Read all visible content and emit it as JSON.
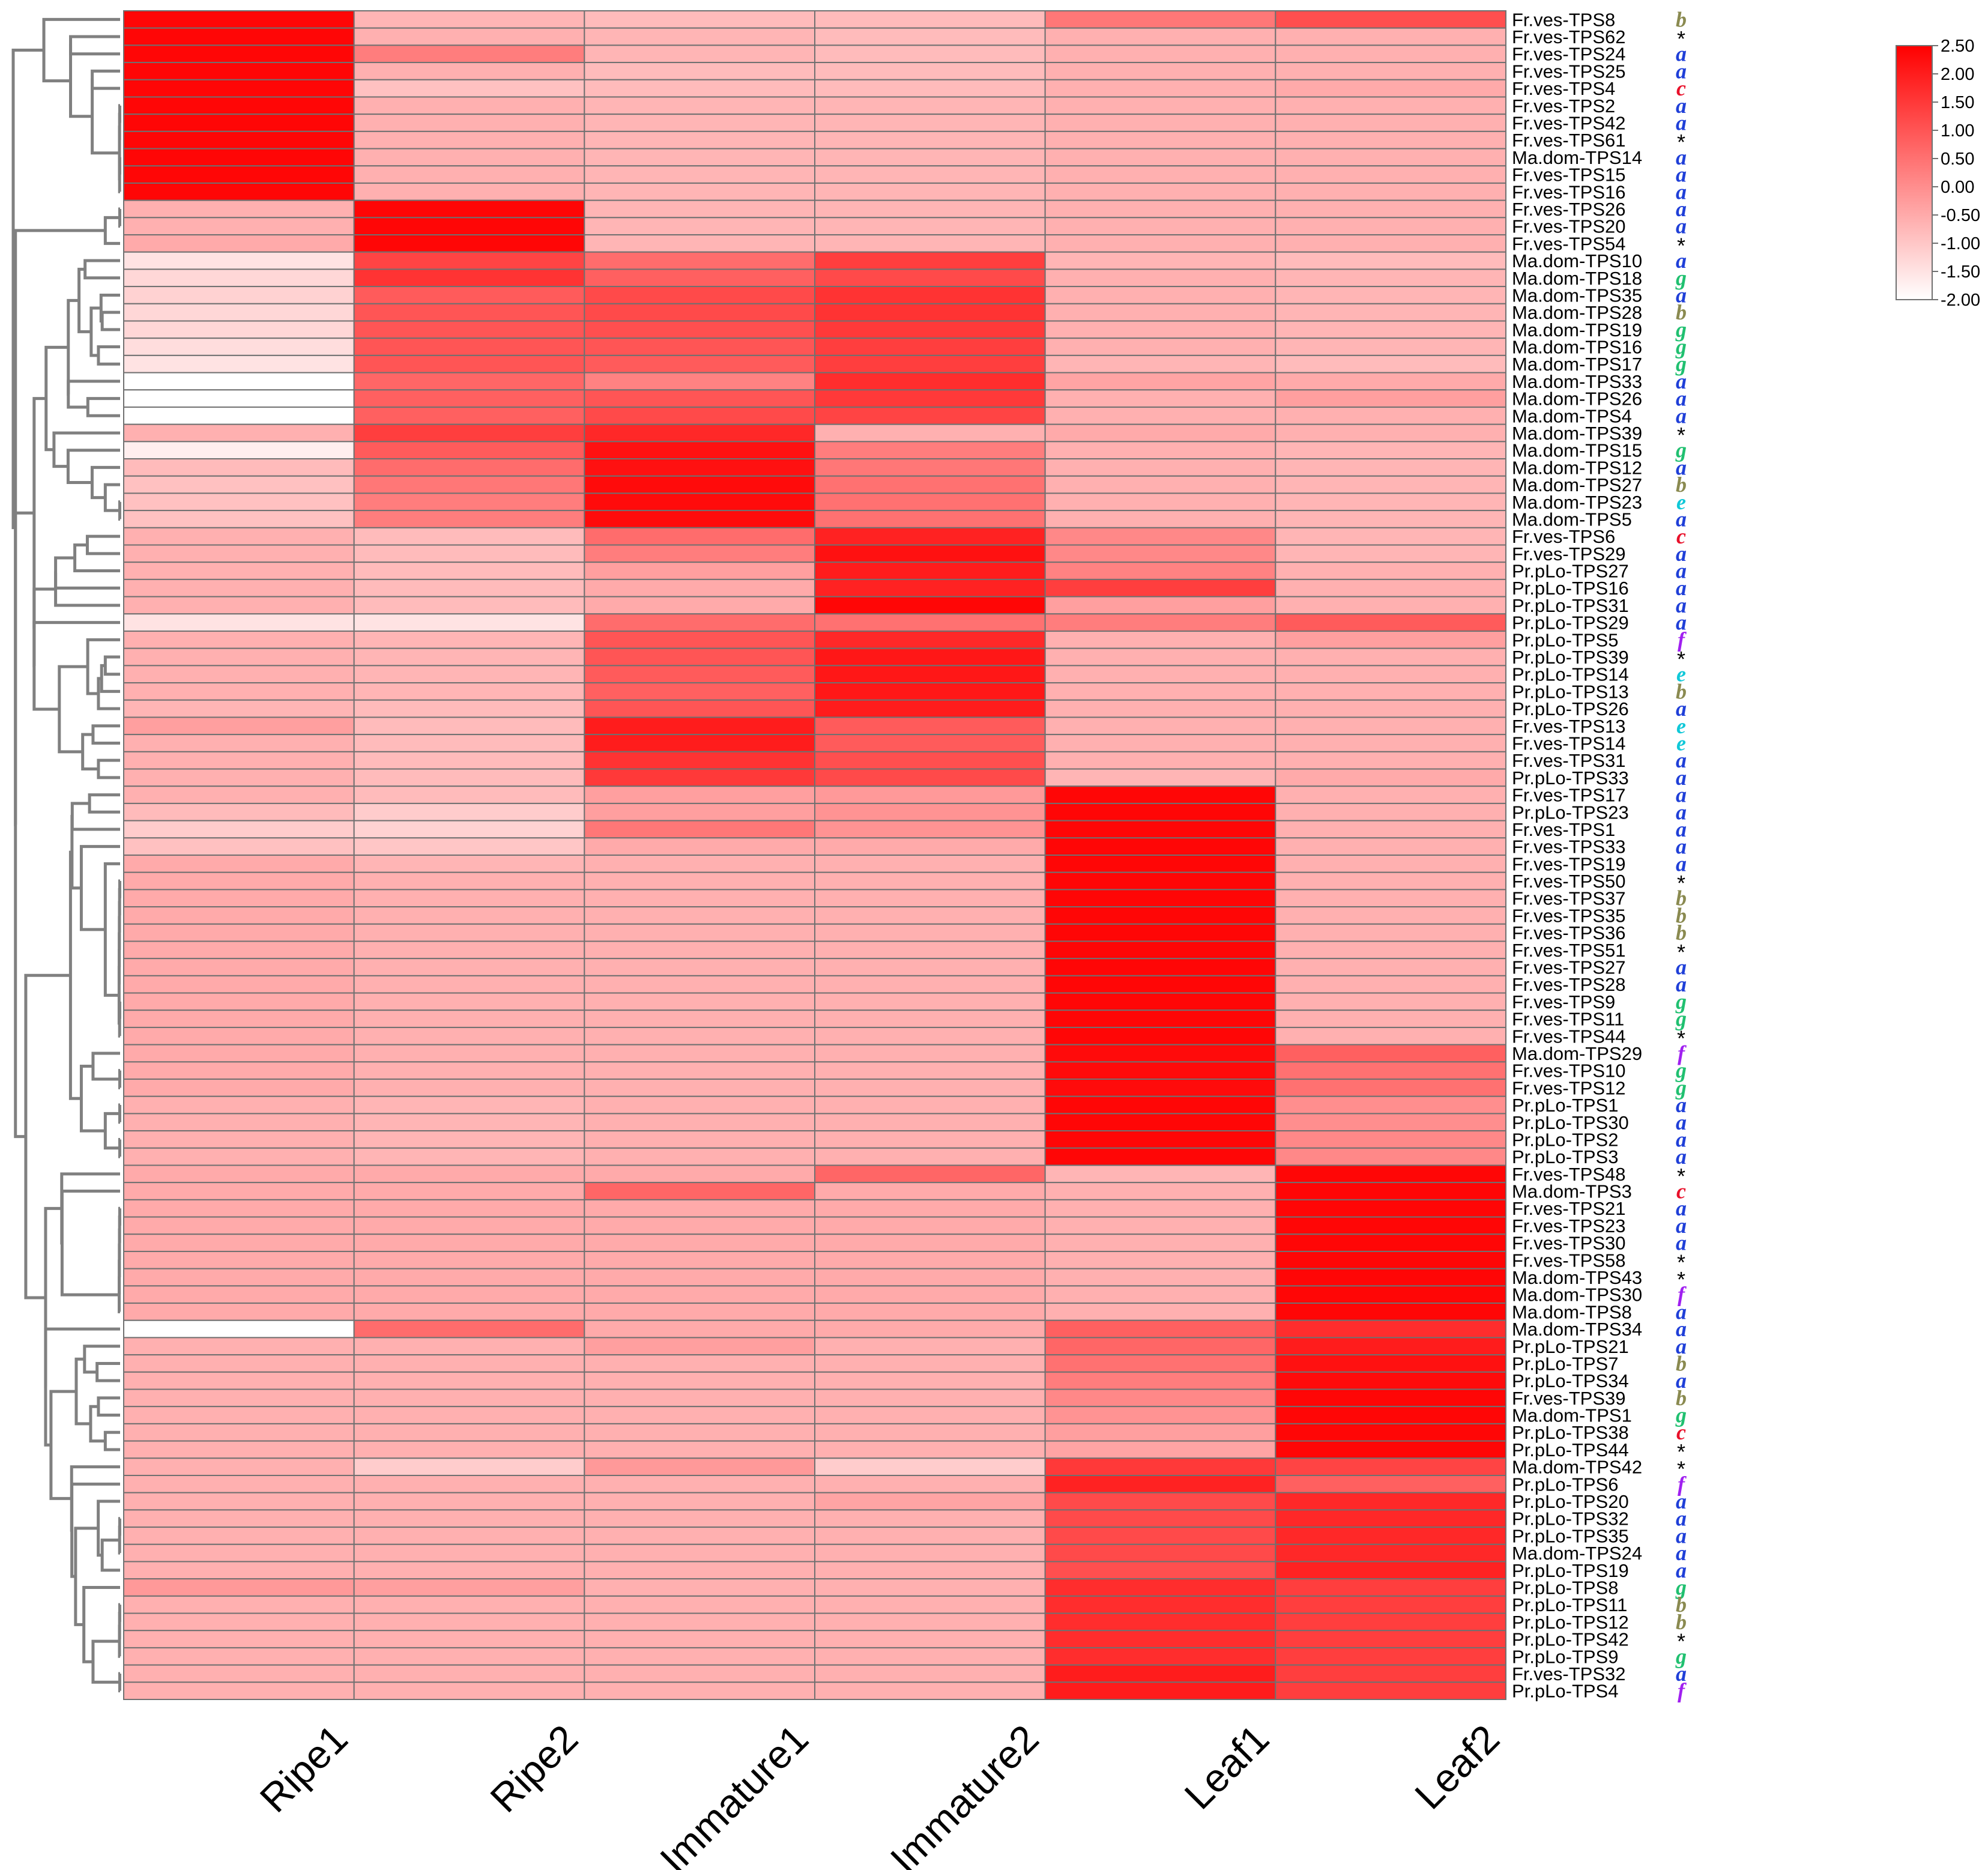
{
  "chart_data": {
    "type": "heatmap",
    "title": "",
    "columns": [
      "Ripe1",
      "Ripe2",
      "Immature1",
      "Immature2",
      "Leaf1",
      "Leaf2"
    ],
    "rows": [
      {
        "label": "Fr.ves-TPS8",
        "family": "b",
        "values": [
          2.4,
          -0.7,
          -0.8,
          -0.8,
          0.4,
          1.1
        ]
      },
      {
        "label": "Fr.ves-TPS62",
        "family": "*",
        "values": [
          2.4,
          -0.6,
          -0.7,
          -0.8,
          -0.6,
          -0.6
        ]
      },
      {
        "label": "Fr.ves-TPS24",
        "family": "a",
        "values": [
          2.4,
          0.3,
          -0.7,
          -0.8,
          -0.6,
          -0.6
        ]
      },
      {
        "label": "Fr.ves-TPS25",
        "family": "a",
        "values": [
          2.4,
          -0.6,
          -0.8,
          -0.8,
          -0.6,
          -0.6
        ]
      },
      {
        "label": "Fr.ves-TPS4",
        "family": "c",
        "values": [
          2.4,
          -0.9,
          -0.8,
          -0.8,
          -0.6,
          -0.5
        ]
      },
      {
        "label": "Fr.ves-TPS2",
        "family": "a",
        "values": [
          2.4,
          -0.6,
          -0.7,
          -0.7,
          -0.6,
          -0.6
        ]
      },
      {
        "label": "Fr.ves-TPS42",
        "family": "a",
        "values": [
          2.4,
          -0.6,
          -0.7,
          -0.7,
          -0.6,
          -0.6
        ]
      },
      {
        "label": "Fr.ves-TPS61",
        "family": "*",
        "values": [
          2.4,
          -0.6,
          -0.7,
          -0.7,
          -0.6,
          -0.6
        ]
      },
      {
        "label": "Ma.dom-TPS14",
        "family": "a",
        "values": [
          2.4,
          -0.6,
          -0.7,
          -0.7,
          -0.6,
          -0.6
        ]
      },
      {
        "label": "Fr.ves-TPS15",
        "family": "a",
        "values": [
          2.4,
          -0.6,
          -0.7,
          -0.7,
          -0.6,
          -0.6
        ]
      },
      {
        "label": "Fr.ves-TPS16",
        "family": "a",
        "values": [
          2.4,
          -0.6,
          -0.7,
          -0.7,
          -0.6,
          -0.6
        ]
      },
      {
        "label": "Fr.ves-TPS26",
        "family": "a",
        "values": [
          -0.6,
          2.4,
          -0.7,
          -0.7,
          -0.6,
          -0.6
        ]
      },
      {
        "label": "Fr.ves-TPS20",
        "family": "a",
        "values": [
          -0.6,
          2.4,
          -0.7,
          -0.7,
          -0.6,
          -0.6
        ]
      },
      {
        "label": "Fr.ves-TPS54",
        "family": "*",
        "values": [
          -0.5,
          2.4,
          -0.7,
          -0.7,
          -0.6,
          -0.6
        ]
      },
      {
        "label": "Ma.dom-TPS10",
        "family": "a",
        "values": [
          -1.5,
          1.3,
          0.6,
          1.4,
          -0.7,
          -0.8
        ]
      },
      {
        "label": "Ma.dom-TPS18",
        "family": "g",
        "values": [
          -1.3,
          1.6,
          0.8,
          1.2,
          -0.6,
          -0.7
        ]
      },
      {
        "label": "Ma.dom-TPS35",
        "family": "a",
        "values": [
          -1.2,
          0.9,
          1.2,
          1.6,
          -0.6,
          -0.7
        ]
      },
      {
        "label": "Ma.dom-TPS28",
        "family": "b",
        "values": [
          -1.3,
          1.0,
          1.2,
          1.6,
          -0.6,
          -0.7
        ]
      },
      {
        "label": "Ma.dom-TPS19",
        "family": "g",
        "values": [
          -1.3,
          1.0,
          1.1,
          1.5,
          -0.6,
          -0.7
        ]
      },
      {
        "label": "Ma.dom-TPS16",
        "family": "g",
        "values": [
          -1.4,
          1.0,
          1.0,
          1.4,
          -0.6,
          -0.7
        ]
      },
      {
        "label": "Ma.dom-TPS17",
        "family": "g",
        "values": [
          -1.5,
          1.0,
          0.9,
          1.4,
          -0.7,
          -0.8
        ]
      },
      {
        "label": "Ma.dom-TPS33",
        "family": "a",
        "values": [
          -2.0,
          0.7,
          0.2,
          1.7,
          -0.4,
          -0.5
        ]
      },
      {
        "label": "Ma.dom-TPS26",
        "family": "a",
        "values": [
          -2.0,
          0.8,
          1.0,
          1.5,
          -0.6,
          -0.3
        ]
      },
      {
        "label": "Ma.dom-TPS4",
        "family": "a",
        "values": [
          -2.0,
          0.8,
          1.2,
          1.3,
          -0.6,
          -0.6
        ]
      },
      {
        "label": "Ma.dom-TPS39",
        "family": "*",
        "values": [
          -0.6,
          1.4,
          1.8,
          -0.6,
          -0.5,
          -0.6
        ]
      },
      {
        "label": "Ma.dom-TPS15",
        "family": "g",
        "values": [
          -1.7,
          0.9,
          2.2,
          0.3,
          -0.6,
          -0.7
        ]
      },
      {
        "label": "Ma.dom-TPS12",
        "family": "a",
        "values": [
          -0.8,
          0.6,
          2.2,
          0.4,
          -0.6,
          -0.7
        ]
      },
      {
        "label": "Ma.dom-TPS27",
        "family": "b",
        "values": [
          -0.9,
          0.4,
          2.3,
          0.5,
          -0.6,
          -0.7
        ]
      },
      {
        "label": "Ma.dom-TPS23",
        "family": "e",
        "values": [
          -0.9,
          0.3,
          2.3,
          0.5,
          -0.6,
          -0.7
        ]
      },
      {
        "label": "Ma.dom-TPS5",
        "family": "a",
        "values": [
          -0.9,
          0.3,
          2.3,
          0.5,
          -0.6,
          -0.7
        ]
      },
      {
        "label": "Fr.ves-TPS6",
        "family": "c",
        "values": [
          -0.6,
          -0.8,
          0.6,
          1.9,
          0.1,
          -0.7
        ]
      },
      {
        "label": "Fr.ves-TPS29",
        "family": "a",
        "values": [
          -0.6,
          -0.8,
          0.3,
          2.2,
          0.1,
          -0.7
        ]
      },
      {
        "label": "Pr.pLo-TPS27",
        "family": "a",
        "values": [
          -0.6,
          -0.8,
          -0.3,
          2.0,
          0.2,
          -0.6
        ]
      },
      {
        "label": "Pr.pLo-TPS16",
        "family": "a",
        "values": [
          -0.6,
          -0.8,
          -0.5,
          1.9,
          1.4,
          -0.6
        ]
      },
      {
        "label": "Pr.pLo-TPS31",
        "family": "a",
        "values": [
          -0.6,
          -0.8,
          -0.5,
          2.4,
          -0.3,
          -0.6
        ]
      },
      {
        "label": "Pr.pLo-TPS29",
        "family": "a",
        "values": [
          -1.5,
          -1.5,
          0.6,
          0.5,
          0.3,
          0.9
        ]
      },
      {
        "label": "Pr.pLo-TPS5",
        "family": "f",
        "values": [
          -0.6,
          -0.7,
          1.0,
          1.8,
          -0.6,
          -0.3
        ]
      },
      {
        "label": "Pr.pLo-TPS39",
        "family": "*",
        "values": [
          -0.6,
          -0.7,
          1.0,
          2.1,
          -0.6,
          -0.6
        ]
      },
      {
        "label": "Pr.pLo-TPS14",
        "family": "e",
        "values": [
          -0.6,
          -0.7,
          0.9,
          2.1,
          -0.6,
          -0.6
        ]
      },
      {
        "label": "Pr.pLo-TPS13",
        "family": "b",
        "values": [
          -0.6,
          -0.7,
          0.8,
          2.1,
          -0.6,
          -0.6
        ]
      },
      {
        "label": "Pr.pLo-TPS26",
        "family": "a",
        "values": [
          -0.7,
          -0.8,
          1.0,
          2.0,
          -0.6,
          -0.6
        ]
      },
      {
        "label": "Fr.ves-TPS13",
        "family": "e",
        "values": [
          -0.3,
          -0.8,
          2.0,
          0.9,
          -0.6,
          -0.6
        ]
      },
      {
        "label": "Fr.ves-TPS14",
        "family": "e",
        "values": [
          -0.6,
          -0.8,
          2.0,
          0.9,
          -0.6,
          -0.6
        ]
      },
      {
        "label": "Fr.ves-TPS31",
        "family": "a",
        "values": [
          -0.6,
          -0.8,
          1.6,
          1.1,
          -0.6,
          -0.6
        ]
      },
      {
        "label": "Pr.pLo-TPS33",
        "family": "a",
        "values": [
          -0.6,
          -0.8,
          1.5,
          1.2,
          -0.7,
          -0.5
        ]
      },
      {
        "label": "Fr.ves-TPS17",
        "family": "a",
        "values": [
          -0.6,
          -0.8,
          -0.3,
          -0.2,
          2.4,
          -0.6
        ]
      },
      {
        "label": "Pr.pLo-TPS23",
        "family": "a",
        "values": [
          -0.8,
          -1.1,
          -0.3,
          -0.1,
          2.4,
          -0.6
        ]
      },
      {
        "label": "Fr.ves-TPS1",
        "family": "a",
        "values": [
          -1.1,
          -1.2,
          0.4,
          -0.1,
          2.4,
          -0.6
        ]
      },
      {
        "label": "Fr.ves-TPS33",
        "family": "a",
        "values": [
          -0.9,
          -1.0,
          -0.5,
          -0.5,
          2.4,
          -0.6
        ]
      },
      {
        "label": "Fr.ves-TPS19",
        "family": "a",
        "values": [
          -0.5,
          -0.7,
          -0.6,
          -0.6,
          2.4,
          -0.6
        ]
      },
      {
        "label": "Fr.ves-TPS50",
        "family": "*",
        "values": [
          -0.5,
          -0.6,
          -0.6,
          -0.6,
          2.4,
          -0.6
        ]
      },
      {
        "label": "Fr.ves-TPS37",
        "family": "b",
        "values": [
          -0.5,
          -0.6,
          -0.6,
          -0.6,
          2.4,
          -0.6
        ]
      },
      {
        "label": "Fr.ves-TPS35",
        "family": "b",
        "values": [
          -0.5,
          -0.6,
          -0.6,
          -0.6,
          2.4,
          -0.6
        ]
      },
      {
        "label": "Fr.ves-TPS36",
        "family": "b",
        "values": [
          -0.5,
          -0.6,
          -0.6,
          -0.6,
          2.4,
          -0.6
        ]
      },
      {
        "label": "Fr.ves-TPS51",
        "family": "*",
        "values": [
          -0.5,
          -0.6,
          -0.6,
          -0.6,
          2.4,
          -0.6
        ]
      },
      {
        "label": "Fr.ves-TPS27",
        "family": "a",
        "values": [
          -0.5,
          -0.6,
          -0.6,
          -0.6,
          2.4,
          -0.6
        ]
      },
      {
        "label": "Fr.ves-TPS28",
        "family": "a",
        "values": [
          -0.5,
          -0.6,
          -0.6,
          -0.6,
          2.4,
          -0.6
        ]
      },
      {
        "label": "Fr.ves-TPS9",
        "family": "g",
        "values": [
          -0.5,
          -0.6,
          -0.6,
          -0.6,
          2.4,
          -0.6
        ]
      },
      {
        "label": "Fr.ves-TPS11",
        "family": "g",
        "values": [
          -0.5,
          -0.6,
          -0.6,
          -0.6,
          2.4,
          -0.6
        ]
      },
      {
        "label": "Fr.ves-TPS44",
        "family": "*",
        "values": [
          -0.5,
          -0.6,
          -0.6,
          -0.6,
          2.4,
          -0.6
        ]
      },
      {
        "label": "Ma.dom-TPS29",
        "family": "f",
        "values": [
          -0.5,
          -0.6,
          -0.6,
          -0.6,
          2.3,
          0.8
        ]
      },
      {
        "label": "Fr.ves-TPS10",
        "family": "g",
        "values": [
          -0.5,
          -0.6,
          -0.6,
          -0.6,
          2.3,
          0.5
        ]
      },
      {
        "label": "Fr.ves-TPS12",
        "family": "g",
        "values": [
          -0.5,
          -0.6,
          -0.6,
          -0.6,
          2.3,
          0.5
        ]
      },
      {
        "label": "Pr.pLo-TPS1",
        "family": "a",
        "values": [
          -0.6,
          -0.7,
          -0.6,
          -0.6,
          2.4,
          0.0
        ]
      },
      {
        "label": "Pr.pLo-TPS30",
        "family": "a",
        "values": [
          -0.6,
          -0.7,
          -0.6,
          -0.6,
          2.4,
          0.0
        ]
      },
      {
        "label": "Pr.pLo-TPS2",
        "family": "a",
        "values": [
          -0.6,
          -0.7,
          -0.6,
          -0.6,
          2.4,
          0.1
        ]
      },
      {
        "label": "Pr.pLo-TPS3",
        "family": "a",
        "values": [
          -0.6,
          -0.7,
          -0.6,
          -0.6,
          2.4,
          0.1
        ]
      },
      {
        "label": "Fr.ves-TPS48",
        "family": "*",
        "values": [
          -0.5,
          -0.5,
          -0.5,
          0.7,
          -0.7,
          2.4
        ]
      },
      {
        "label": "Ma.dom-TPS3",
        "family": "c",
        "values": [
          -0.5,
          -0.5,
          0.7,
          -0.5,
          -0.6,
          2.4
        ]
      },
      {
        "label": "Fr.ves-TPS21",
        "family": "a",
        "values": [
          -0.5,
          -0.5,
          -0.5,
          -0.5,
          -0.6,
          2.4
        ]
      },
      {
        "label": "Fr.ves-TPS23",
        "family": "a",
        "values": [
          -0.5,
          -0.5,
          -0.5,
          -0.5,
          -0.6,
          2.4
        ]
      },
      {
        "label": "Fr.ves-TPS30",
        "family": "a",
        "values": [
          -0.5,
          -0.5,
          -0.5,
          -0.5,
          -0.6,
          2.4
        ]
      },
      {
        "label": "Fr.ves-TPS58",
        "family": "*",
        "values": [
          -0.5,
          -0.5,
          -0.5,
          -0.5,
          -0.6,
          2.4
        ]
      },
      {
        "label": "Ma.dom-TPS43",
        "family": "*",
        "values": [
          -0.5,
          -0.5,
          -0.5,
          -0.5,
          -0.6,
          2.4
        ]
      },
      {
        "label": "Ma.dom-TPS30",
        "family": "f",
        "values": [
          -0.5,
          -0.5,
          -0.5,
          -0.5,
          -0.6,
          2.4
        ]
      },
      {
        "label": "Ma.dom-TPS8",
        "family": "a",
        "values": [
          -0.5,
          -0.5,
          -0.5,
          -0.5,
          -0.6,
          2.4
        ]
      },
      {
        "label": "Ma.dom-TPS34",
        "family": "a",
        "values": [
          -2.0,
          0.6,
          -0.5,
          -0.5,
          0.8,
          1.7
        ]
      },
      {
        "label": "Pr.pLo-TPS21",
        "family": "a",
        "values": [
          -0.6,
          -0.6,
          -0.3,
          -0.6,
          0.7,
          2.0
        ]
      },
      {
        "label": "Pr.pLo-TPS7",
        "family": "b",
        "values": [
          -0.6,
          -0.6,
          -0.6,
          -0.6,
          0.5,
          2.2
        ]
      },
      {
        "label": "Pr.pLo-TPS34",
        "family": "a",
        "values": [
          -0.6,
          -0.6,
          -0.6,
          -0.6,
          0.3,
          2.3
        ]
      },
      {
        "label": "Fr.ves-TPS39",
        "family": "b",
        "values": [
          -0.6,
          -0.6,
          -0.6,
          -0.6,
          0.1,
          2.4
        ]
      },
      {
        "label": "Ma.dom-TPS1",
        "family": "g",
        "values": [
          -0.6,
          -0.6,
          -0.6,
          -0.6,
          -0.1,
          2.4
        ]
      },
      {
        "label": "Pr.pLo-TPS38",
        "family": "c",
        "values": [
          -0.6,
          -0.6,
          -0.6,
          -0.6,
          -0.3,
          2.4
        ]
      },
      {
        "label": "Pr.pLo-TPS44",
        "family": "*",
        "values": [
          -0.6,
          -0.6,
          -0.6,
          -0.6,
          -0.4,
          2.4
        ]
      },
      {
        "label": "Ma.dom-TPS42",
        "family": "*",
        "values": [
          -0.6,
          -1.1,
          -0.2,
          -1.1,
          1.5,
          1.3
        ]
      },
      {
        "label": "Pr.pLo-TPS6",
        "family": "f",
        "values": [
          -0.6,
          -0.6,
          -0.6,
          -0.6,
          1.9,
          0.8
        ]
      },
      {
        "label": "Pr.pLo-TPS20",
        "family": "a",
        "values": [
          -0.6,
          -0.6,
          -0.6,
          -0.4,
          1.2,
          1.8
        ]
      },
      {
        "label": "Pr.pLo-TPS32",
        "family": "a",
        "values": [
          -0.6,
          -0.6,
          -0.6,
          -0.6,
          1.2,
          1.8
        ]
      },
      {
        "label": "Pr.pLo-TPS35",
        "family": "a",
        "values": [
          -0.6,
          -0.6,
          -0.6,
          -0.6,
          1.2,
          1.8
        ]
      },
      {
        "label": "Ma.dom-TPS24",
        "family": "a",
        "values": [
          -0.6,
          -0.6,
          -0.6,
          -0.6,
          1.2,
          1.8
        ]
      },
      {
        "label": "Pr.pLo-TPS19",
        "family": "a",
        "values": [
          -0.6,
          -0.6,
          -0.6,
          -0.6,
          1.1,
          1.9
        ]
      },
      {
        "label": "Pr.pLo-TPS8",
        "family": "g",
        "values": [
          -0.2,
          -0.3,
          -0.6,
          -0.6,
          1.7,
          1.4
        ]
      },
      {
        "label": "Pr.pLo-TPS11",
        "family": "b",
        "values": [
          -0.6,
          -0.6,
          -0.6,
          -0.6,
          1.7,
          1.4
        ]
      },
      {
        "label": "Pr.pLo-TPS12",
        "family": "b",
        "values": [
          -0.6,
          -0.6,
          -0.6,
          -0.6,
          1.7,
          1.4
        ]
      },
      {
        "label": "Pr.pLo-TPS42",
        "family": "*",
        "values": [
          -0.6,
          -0.6,
          -0.6,
          -0.6,
          1.7,
          1.4
        ]
      },
      {
        "label": "Pr.pLo-TPS9",
        "family": "g",
        "values": [
          -0.6,
          -0.6,
          -0.6,
          -0.6,
          1.7,
          1.4
        ]
      },
      {
        "label": "Fr.ves-TPS32",
        "family": "a",
        "values": [
          -0.6,
          -0.6,
          -0.6,
          -0.6,
          2.0,
          1.4
        ]
      },
      {
        "label": "Pr.pLo-TPS4",
        "family": "f",
        "values": [
          -0.6,
          -0.6,
          -0.6,
          -0.6,
          2.0,
          1.4
        ]
      }
    ],
    "color_scale": {
      "min": -2.0,
      "max": 2.5,
      "low_color": "#ffffff",
      "high_color": "#ff0000"
    },
    "colorbar_ticks": [
      "2.50",
      "2.00",
      "1.50",
      "1.00",
      "0.50",
      "0.00",
      "-0.50",
      "-1.00",
      "-1.50",
      "-2.00"
    ],
    "family_colors": {
      "a": "#1f3fd8",
      "b": "#8a8a50",
      "c": "#e8102a",
      "e": "#10c8d8",
      "f": "#a020f0",
      "g": "#20c070",
      "*": "#000000"
    },
    "legend_position": "top-right",
    "dendrogram": "left"
  }
}
